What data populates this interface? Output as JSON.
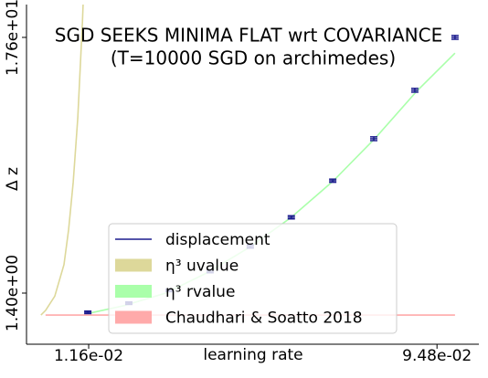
{
  "chart_data": {
    "type": "line",
    "title": "SGD SEEKS MINIMA FLAT wrt COVARIANCE",
    "subtitle": "(T=10000 SGD on archimedes)",
    "x_label": "learning rate",
    "y_label": "Δ z",
    "xlim": [
      -0.00325,
      0.1048
    ],
    "ylim": [
      -1.84,
      19.68
    ],
    "xticks": [
      {
        "value": 0.0116,
        "label": "1.16e-02"
      },
      {
        "value": 0.0948,
        "label": "9.48e-02"
      }
    ],
    "yticks": [
      {
        "value": 1.4,
        "label": "1.40e+00"
      },
      {
        "value": 17.6,
        "label": "1.76e+01"
      }
    ],
    "legend": "lower center",
    "series": [
      {
        "name": "displacement",
        "color": "#1c1c8e",
        "style": "errorbar",
        "x": [
          0.0114,
          0.0212,
          0.0308,
          0.0406,
          0.0502,
          0.06,
          0.0699,
          0.0797,
          0.0895,
          0.0991
        ],
        "values": [
          0.18,
          0.76,
          1.57,
          2.79,
          4.35,
          6.2,
          8.52,
          11.18,
          14.25,
          17.6
        ],
        "errors": [
          0.08,
          0.08,
          0.08,
          0.1,
          0.1,
          0.1,
          0.1,
          0.12,
          0.12,
          0.12
        ]
      },
      {
        "name": "η³ uvalue",
        "color": "#ddd89a",
        "style": "line",
        "x": [
          0.0002,
          0.0013,
          0.0035,
          0.0057,
          0.0068,
          0.0079,
          0.009,
          0.0101,
          0.0106
        ],
        "values": [
          0.01,
          0.3,
          1.2,
          3.2,
          5.4,
          8.4,
          12.5,
          18.5,
          22.0
        ]
      },
      {
        "name": "η³ rvalue",
        "color": "#aaffaa",
        "style": "line",
        "x": [
          0.0114,
          0.02,
          0.03,
          0.04,
          0.05,
          0.06,
          0.07,
          0.08,
          0.09,
          0.0991
        ],
        "values": [
          0.1,
          0.6,
          1.4,
          2.7,
          4.3,
          6.2,
          8.5,
          11.2,
          14.2,
          16.6
        ]
      },
      {
        "name": "Chaudhari & Soatto 2018",
        "color": "#ffaaaa",
        "style": "line",
        "x": [
          0.0013,
          0.0991
        ],
        "values": [
          0.01,
          0.01
        ]
      }
    ]
  }
}
